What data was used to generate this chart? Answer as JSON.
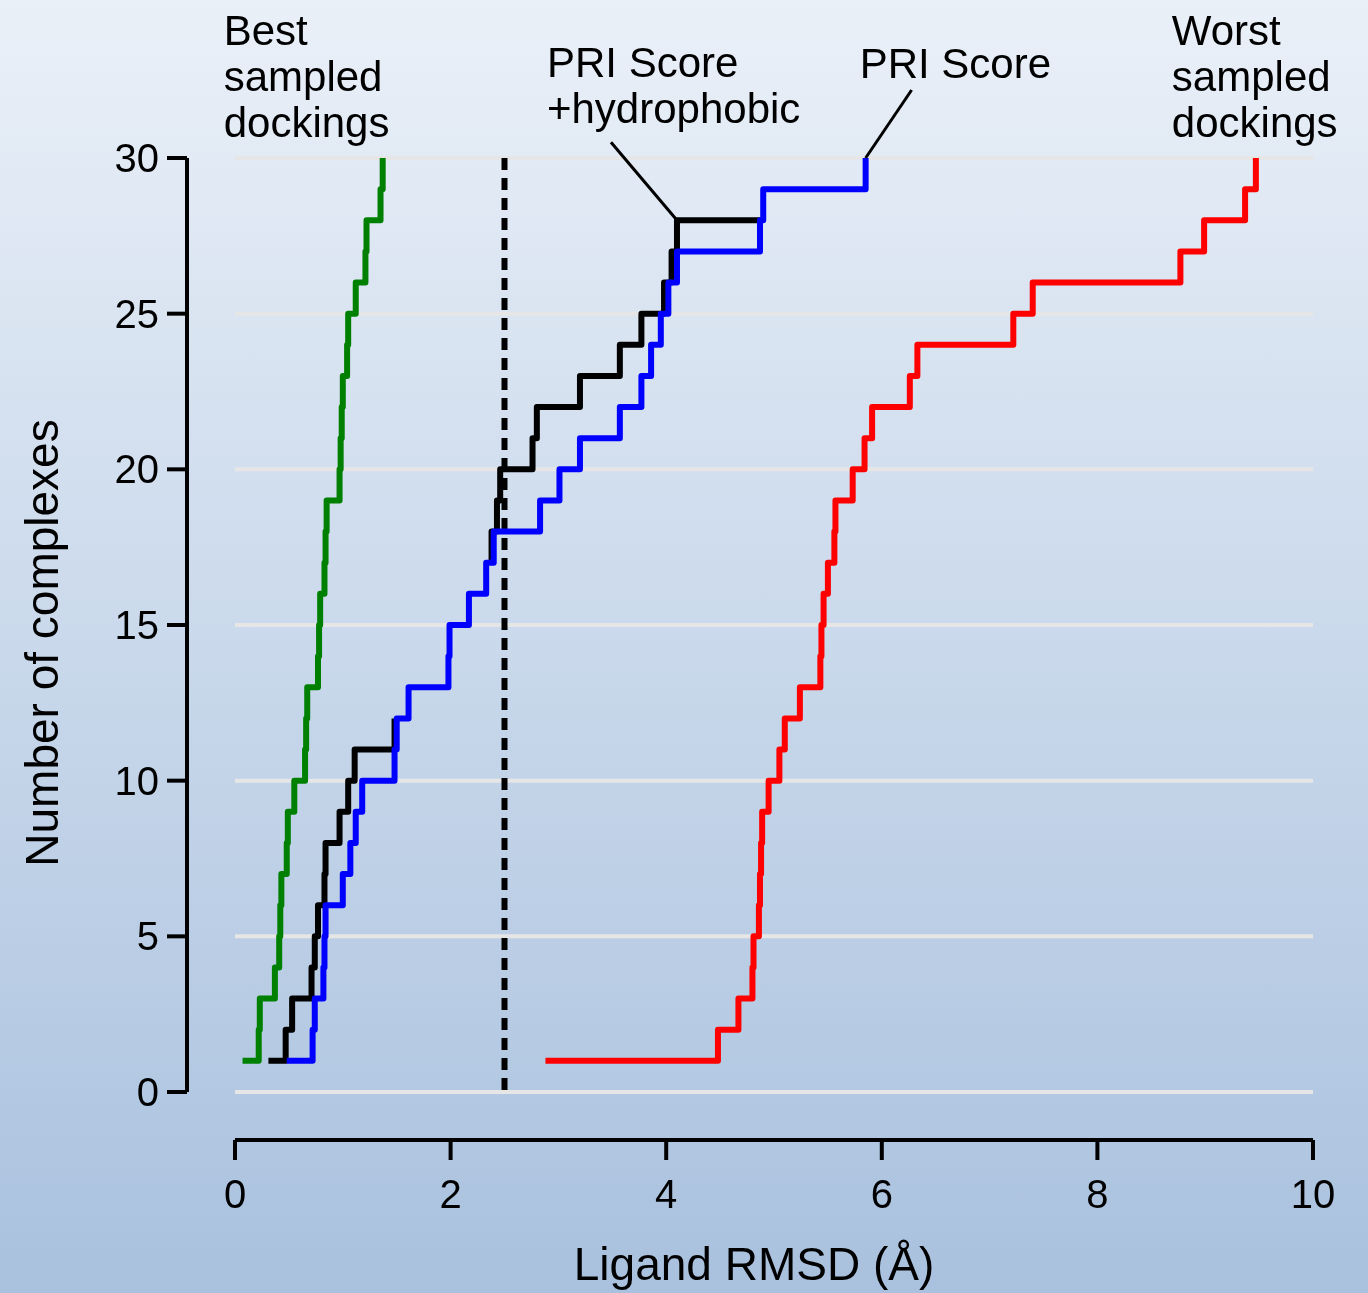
{
  "chart_data": {
    "type": "step",
    "xlabel": "Ligand RMSD (Å)",
    "ylabel": "Number of complexes",
    "xlim": [
      0,
      10
    ],
    "xticks": [
      0,
      2,
      4,
      6,
      8,
      10
    ],
    "ylim": [
      0,
      30
    ],
    "yticks": [
      0,
      5,
      10,
      15,
      20,
      25,
      30
    ],
    "grid": "y",
    "legend": false,
    "line_style": "solid",
    "marker": "none",
    "series": [
      {
        "name": "Best sampled dockings",
        "color": "#008000",
        "x": [
          0.07,
          0.22,
          0.23,
          0.37,
          0.41,
          0.42,
          0.43,
          0.48,
          0.49,
          0.55,
          0.65,
          0.66,
          0.67,
          0.77,
          0.78,
          0.79,
          0.83,
          0.84,
          0.85,
          0.97,
          0.98,
          0.99,
          1.0,
          1.04,
          1.05,
          1.12,
          1.21,
          1.22,
          1.35,
          1.37
        ],
        "values": [
          1,
          2,
          3,
          4,
          5,
          6,
          7,
          8,
          9,
          10,
          11,
          12,
          13,
          14,
          15,
          16,
          17,
          18,
          19,
          20,
          21,
          22,
          23,
          24,
          25,
          26,
          27,
          28,
          29,
          30
        ]
      },
      {
        "name": "PRI Score +hydrophobic",
        "color": "#000000",
        "x": [
          0.31,
          0.47,
          0.53,
          0.71,
          0.74,
          0.77,
          0.83,
          0.84,
          0.97,
          1.05,
          1.11,
          1.48,
          1.61,
          1.98,
          1.99,
          2.17,
          2.38,
          2.38,
          2.43,
          2.46,
          2.76,
          2.8,
          3.2,
          3.57,
          3.77,
          3.98,
          4.05,
          4.1,
          4.87
        ],
        "values": [
          1,
          2,
          3,
          4,
          5,
          6,
          7,
          8,
          9,
          10,
          11,
          12,
          null,
          null,
          null,
          null,
          17,
          18,
          19,
          20,
          21,
          22,
          23,
          24,
          25,
          26,
          27,
          28,
          28
        ]
      },
      {
        "name": "PRI Score",
        "color": "#0000ff",
        "x": [
          0.48,
          0.72,
          0.74,
          0.82,
          0.83,
          0.84,
          1.0,
          1.07,
          1.12,
          1.18,
          1.48,
          1.5,
          1.61,
          1.98,
          1.99,
          2.17,
          2.33,
          2.4,
          2.83,
          3.01,
          3.2,
          3.57,
          3.77,
          3.86,
          3.95,
          4.02,
          4.1,
          4.87,
          4.9,
          5.85
        ],
        "values": [
          1,
          2,
          3,
          4,
          5,
          6,
          7,
          8,
          9,
          10,
          11,
          12,
          13,
          14,
          15,
          16,
          17,
          18,
          19,
          20,
          21,
          22,
          23,
          24,
          25,
          26,
          27,
          28,
          29,
          30
        ]
      },
      {
        "name": "Worst sampled dockings",
        "color": "#ff0000",
        "x": [
          2.88,
          4.48,
          4.67,
          4.8,
          4.81,
          4.86,
          4.87,
          4.88,
          4.89,
          4.95,
          5.05,
          5.1,
          5.24,
          5.43,
          5.44,
          5.46,
          5.5,
          5.56,
          5.57,
          5.73,
          5.84,
          5.91,
          6.26,
          6.33,
          7.22,
          7.4,
          8.77,
          8.99,
          9.37,
          9.47
        ],
        "values": [
          1,
          2,
          3,
          4,
          5,
          6,
          7,
          8,
          9,
          10,
          11,
          12,
          13,
          14,
          15,
          16,
          17,
          18,
          19,
          20,
          21,
          22,
          23,
          24,
          25,
          26,
          27,
          28,
          29,
          30
        ]
      }
    ],
    "ref_lines": [
      {
        "axis": "x",
        "value": 2.5,
        "color": "#000000",
        "line_style": "dashed"
      }
    ]
  }
}
